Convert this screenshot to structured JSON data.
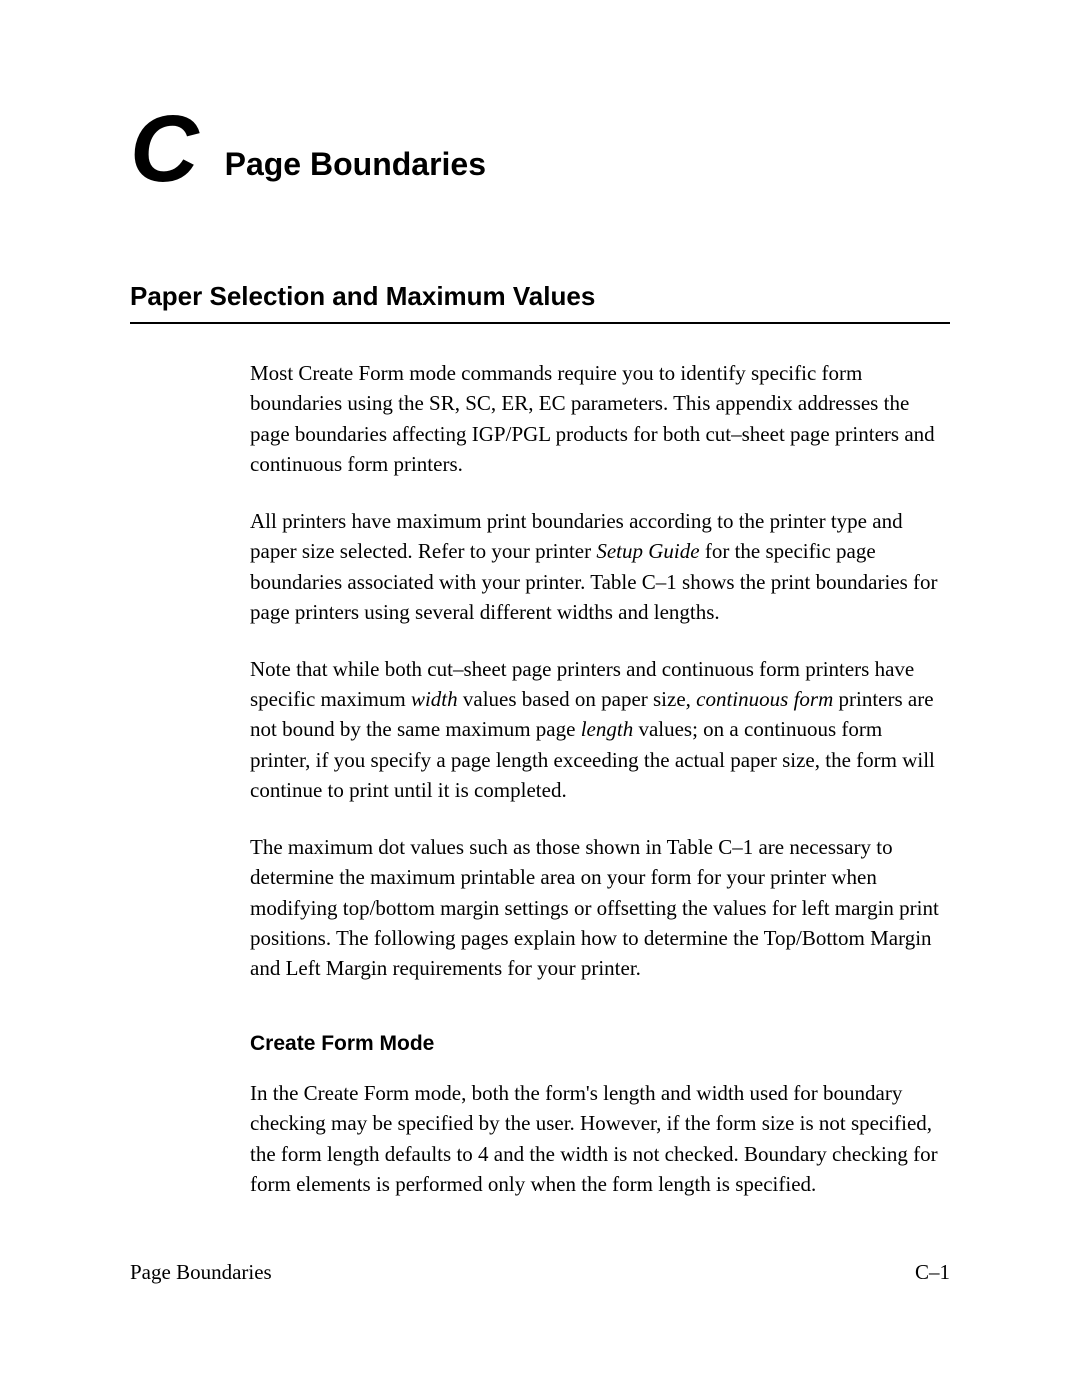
{
  "chapter": {
    "letter": "C",
    "title": "Page Boundaries"
  },
  "section": {
    "heading": "Paper Selection and Maximum Values",
    "paragraphs": {
      "p1": "Most Create Form mode commands require you to identify specific form boundaries using the SR, SC, ER, EC parameters. This appendix addresses the page boundaries affecting IGP/PGL products for both cut–sheet page printers and continuous form printers.",
      "p2_a": "All printers have maximum print boundaries according to the printer type and paper size selected. Refer to your printer ",
      "p2_i1": "Setup Guide",
      "p2_b": " for the specific page boundaries associated with your printer. Table C–1 shows the print boundaries for page printers using several different widths and lengths.",
      "p3_a": "Note that while both cut–sheet page printers and continuous form printers have specific maximum ",
      "p3_i1": "width",
      "p3_b": " values based on paper size, ",
      "p3_i2": "continuous form",
      "p3_c": " printers are not bound by the same maximum page ",
      "p3_i3": "length",
      "p3_d": " values; on a continuous form printer, if you specify a page length exceeding the actual paper size, the form will continue to print until it is completed.",
      "p4": "The maximum dot values such as those shown in Table C–1 are necessary to determine the maximum printable area on your form for your printer when modifying top/bottom margin settings or offsetting the values for left margin print positions. The following pages explain how to determine the Top/Bottom Margin and Left Margin requirements for your printer."
    },
    "subsection": {
      "heading": "Create Form Mode",
      "p1": "In the Create Form mode, both the form's length and width used for boundary checking may be specified by the user. However, if the form size is not specified, the form length defaults to 4 and the width is not checked. Boundary checking for form elements is performed only when the form length is specified."
    }
  },
  "footer": {
    "left": "Page Boundaries",
    "right": "C–1"
  }
}
